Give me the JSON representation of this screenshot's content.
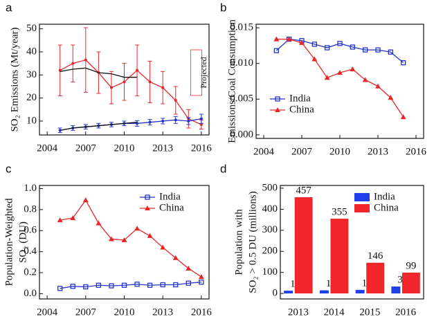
{
  "chart_data": [
    {
      "type": "line",
      "panel": "a",
      "ylabel": [
        "SO₂ Emissions (Mt/year)"
      ],
      "annotation": "Projected",
      "x": [
        2005,
        2006,
        2007,
        2008,
        2009,
        2010,
        2011,
        2012,
        2013,
        2014,
        2015,
        2016
      ],
      "xlim": [
        2003.4,
        2016.6
      ],
      "xticks": [
        2004,
        2007,
        2010,
        2013,
        2016
      ],
      "ylim": [
        4,
        52
      ],
      "yticks": [
        10,
        20,
        30,
        40,
        50
      ],
      "series": [
        {
          "color": "#e8262a",
          "marker": "dot",
          "values": [
            32,
            35,
            36.5,
            31,
            24.5,
            27,
            32,
            27,
            24.5,
            19,
            11,
            8.5
          ],
          "errors": [
            11,
            8,
            14,
            9,
            7,
            8,
            11,
            9,
            7,
            6,
            4,
            2
          ]
        },
        {
          "color": "#2233cc",
          "marker": "dot",
          "values": [
            6,
            7,
            7.5,
            8,
            8.5,
            9,
            9,
            9.5,
            10,
            10.5,
            10,
            11
          ],
          "errors": [
            1,
            1,
            1,
            1,
            1,
            1,
            1.2,
            1.2,
            1.2,
            1.5,
            1.5,
            2
          ]
        },
        {
          "color": "#111111",
          "values": [
            31.5,
            32.5,
            33,
            31,
            30.5,
            29,
            29,
            null,
            null,
            null,
            null,
            null
          ]
        },
        {
          "color": "#111111",
          "values": [
            6,
            7,
            7.5,
            8,
            8.5,
            9,
            9.5,
            null,
            null,
            null,
            null,
            null
          ]
        }
      ]
    },
    {
      "type": "line",
      "panel": "b",
      "ylabel": [
        "Emissions/Coal Consumption"
      ],
      "legend": "center left",
      "x": [
        2005,
        2006,
        2007,
        2008,
        2009,
        2010,
        2011,
        2012,
        2013,
        2014,
        2015
      ],
      "xlim": [
        2003.4,
        2016.6
      ],
      "xticks": [
        2004,
        2007,
        2010,
        2013,
        2016
      ],
      "ylim": [
        -0.0005,
        0.0155
      ],
      "yticks": [
        {
          "value": 0,
          "label": "0.000"
        },
        0.005,
        {
          "value": 0.01,
          "label": "0.010"
        },
        0.015
      ],
      "series": [
        {
          "name": "India",
          "color": "#2233cc",
          "marker": "square",
          "values": [
            0.0118,
            0.0134,
            0.0132,
            0.0127,
            0.0122,
            0.0128,
            0.0123,
            0.0119,
            0.0119,
            0.0116,
            0.0101
          ]
        },
        {
          "name": "China",
          "color": "#e8262a",
          "marker": "triangle",
          "values": [
            0.0134,
            0.0134,
            0.0129,
            0.0106,
            0.008,
            0.0087,
            0.0092,
            0.0077,
            0.0068,
            0.0052,
            0.0025
          ]
        }
      ]
    },
    {
      "type": "line",
      "panel": "c",
      "ylabel": [
        "Population-Weighted",
        "SO₂ (DU)"
      ],
      "legend": "upper right",
      "x": [
        2005,
        2006,
        2007,
        2008,
        2009,
        2010,
        2011,
        2012,
        2013,
        2014,
        2015,
        2016
      ],
      "xlim": [
        2003.4,
        2016.6
      ],
      "xticks": [
        2004,
        2007,
        2010,
        2013,
        2016
      ],
      "ylim": [
        -0.05,
        1.03
      ],
      "yticks": [
        {
          "value": 0,
          "label": "0.0"
        },
        0.2,
        0.4,
        0.6,
        0.8,
        {
          "value": 1,
          "label": "1.0"
        }
      ],
      "series": [
        {
          "name": "India",
          "color": "#2233cc",
          "marker": "square",
          "values": [
            0.05,
            0.07,
            0.065,
            0.08,
            0.075,
            0.08,
            0.09,
            0.08,
            0.085,
            0.085,
            0.1,
            0.11
          ]
        },
        {
          "name": "China",
          "color": "#e8262a",
          "marker": "triangle",
          "values": [
            0.7,
            0.72,
            0.89,
            0.67,
            0.52,
            0.51,
            0.62,
            0.55,
            0.44,
            0.34,
            0.24,
            0.16
          ]
        }
      ]
    },
    {
      "type": "bar",
      "panel": "d",
      "ylabel": [
        "Population with",
        "SO₂ > 0.5 DU (millions)"
      ],
      "legend": "upper right",
      "categories": [
        "2013",
        "2014",
        "2015",
        "2016"
      ],
      "ylim": [
        -26,
        513
      ],
      "yticks": [
        0,
        100,
        200,
        300,
        400,
        500
      ],
      "series": [
        {
          "name": "India",
          "color": "#1f3fe8",
          "label_color": "#3a5a9a",
          "values": [
            13,
            15,
            17,
            33
          ]
        },
        {
          "name": "China",
          "color": "#f0262a",
          "label_color": "#c0262a",
          "values": [
            457,
            355,
            146,
            99
          ]
        }
      ]
    }
  ]
}
